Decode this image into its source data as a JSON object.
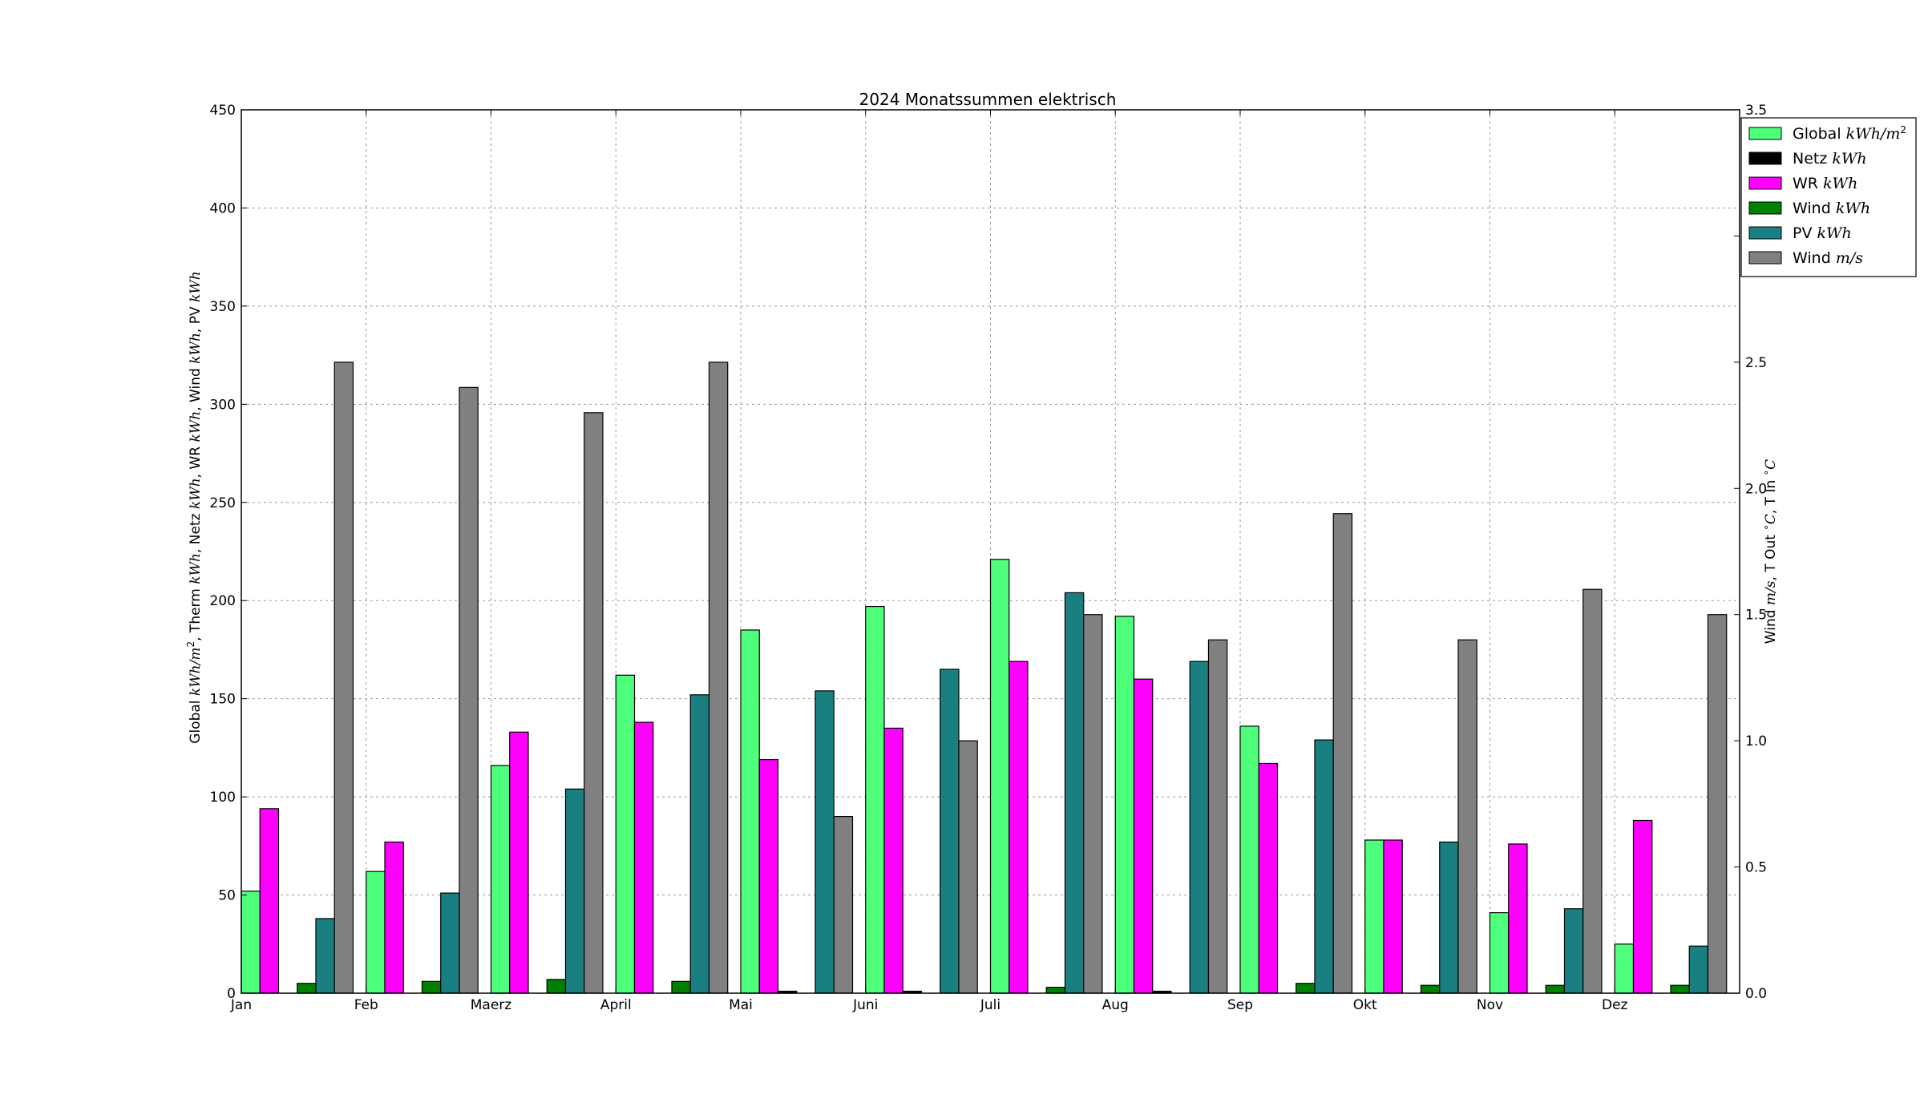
{
  "chart_data": {
    "type": "bar",
    "title": "2024 Monatssummen elektrisch",
    "ylabel_left": "Global kWh/m², Therm kWh, Netz kWh, WR kWh, Wind kWh, PV kWh",
    "ylabel_right": "Wind m/s, T Out °C, T In °C",
    "categories": [
      "Jan",
      "Feb",
      "Maerz",
      "April",
      "Mai",
      "Juni",
      "Juli",
      "Aug",
      "Sep",
      "Okt",
      "Nov",
      "Dez"
    ],
    "ylim_left": [
      0,
      450
    ],
    "yticks_left": [
      "0",
      "50",
      "100",
      "150",
      "200",
      "250",
      "300",
      "350",
      "400",
      "450"
    ],
    "ylim_right": [
      0,
      3.5
    ],
    "yticks_right": [
      "0.0",
      "0.5",
      "1.0",
      "1.5",
      "2.0",
      "2.5",
      "3.0",
      "3.5"
    ],
    "grid": true,
    "legend_position": "top-right",
    "series": [
      {
        "name": "Global",
        "unit": "kWh/m²",
        "axis": "left",
        "color": "#4dff7a",
        "values": [
          52,
          62,
          116,
          162,
          185,
          197,
          221,
          192,
          136,
          78,
          41,
          25
        ]
      },
      {
        "name": "WR",
        "unit": "kWh",
        "axis": "left",
        "color": "#ff00ff",
        "values": [
          94,
          77,
          133,
          138,
          119,
          135,
          169,
          160,
          117,
          78,
          76,
          88
        ]
      },
      {
        "name": "Netz",
        "unit": "kWh",
        "axis": "left",
        "color": "#000000",
        "values": [
          0,
          0,
          0,
          0,
          1,
          1,
          0,
          1,
          0,
          0,
          0,
          0
        ]
      },
      {
        "name": "Wind",
        "unit": "kWh",
        "axis": "left",
        "color": "#008000",
        "values": [
          5,
          6,
          7,
          6,
          0,
          0,
          3,
          0,
          5,
          4,
          4,
          4
        ]
      },
      {
        "name": "PV",
        "unit": "kWh",
        "axis": "left",
        "color": "#1a7f80",
        "values": [
          38,
          51,
          104,
          152,
          154,
          165,
          204,
          169,
          129,
          77,
          43,
          24
        ]
      },
      {
        "name": "Wind",
        "unit": "m/s",
        "axis": "right",
        "color": "#808080",
        "values": [
          2.5,
          2.4,
          2.3,
          2.5,
          0.7,
          1.0,
          1.5,
          1.4,
          1.9,
          1.4,
          1.6,
          1.5
        ]
      }
    ],
    "legend": [
      {
        "name": "Global",
        "unit": "kWh/m",
        "sup": "2",
        "color": "#4dff7a"
      },
      {
        "name": "Netz",
        "unit": "kWh",
        "sup": "",
        "color": "#000000"
      },
      {
        "name": "WR",
        "unit": "kWh",
        "sup": "",
        "color": "#ff00ff"
      },
      {
        "name": "Wind",
        "unit": "kWh",
        "sup": "",
        "color": "#008000"
      },
      {
        "name": "PV",
        "unit": "kWh",
        "sup": "",
        "color": "#1a7f80"
      },
      {
        "name": "Wind",
        "unit": "m/s",
        "sup": "",
        "color": "#808080"
      }
    ]
  }
}
